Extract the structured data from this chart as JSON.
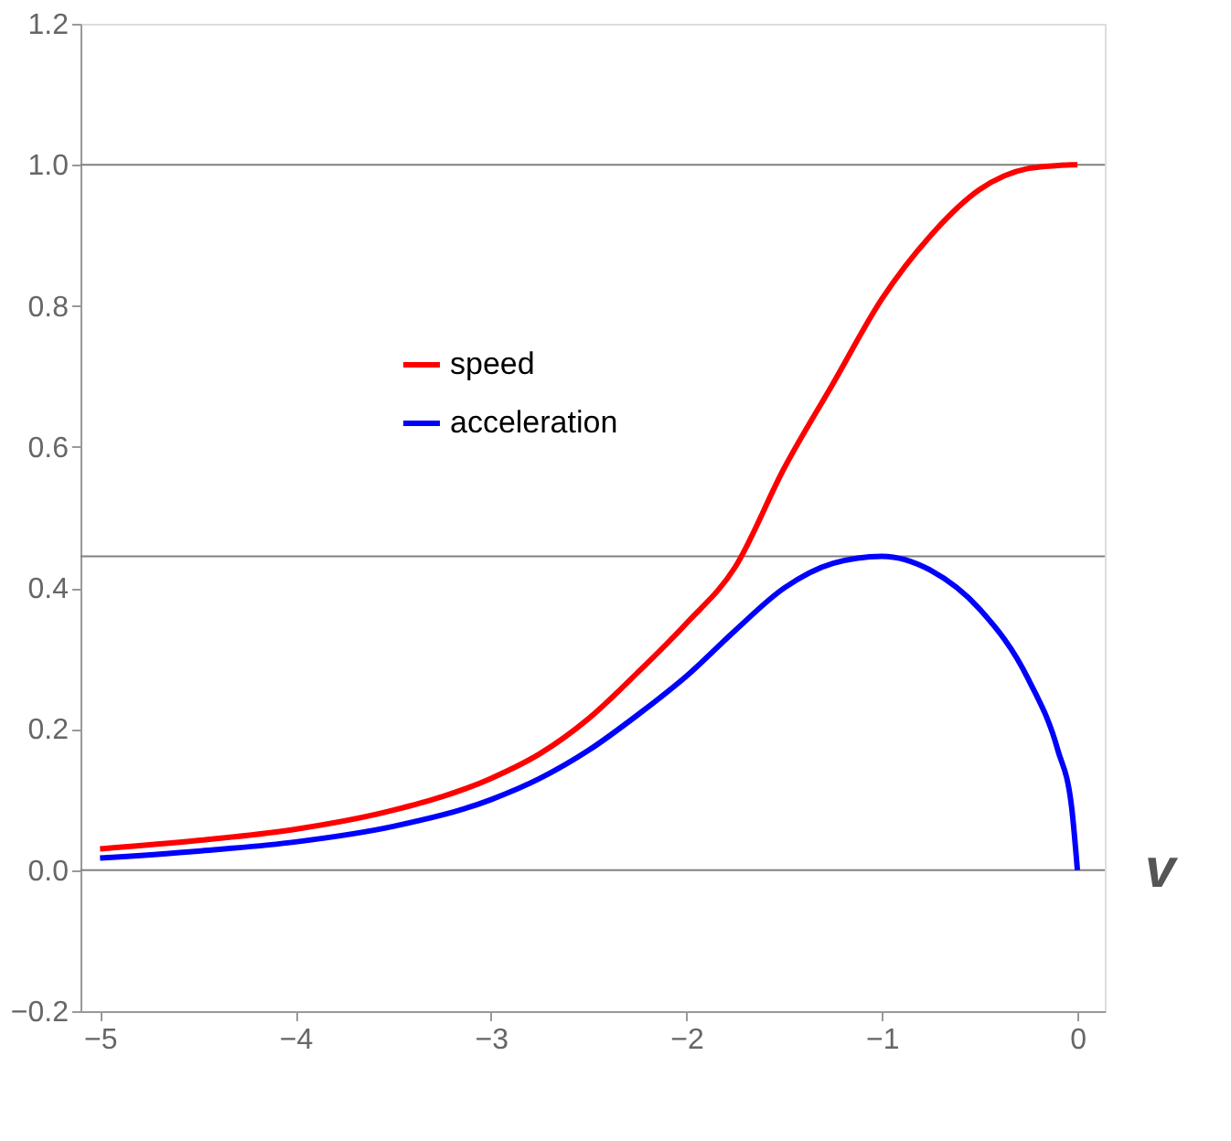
{
  "chart_data": {
    "type": "line",
    "x": [
      -5,
      -4.5,
      -4,
      -3.5,
      -3,
      -2.75,
      -2.5,
      -2.25,
      -2,
      -1.75,
      -1.5,
      -1.25,
      -1,
      -0.75,
      -0.5,
      -0.25,
      -0.1,
      -0.03,
      0
    ],
    "series": [
      {
        "name": "speed",
        "color": "#ff0000",
        "values": [
          0.03,
          0.042,
          0.058,
          0.085,
          0.13,
          0.165,
          0.215,
          0.28,
          0.35,
          0.43,
          0.57,
          0.69,
          0.81,
          0.9,
          0.965,
          0.995,
          0.999,
          1.0,
          1.0
        ]
      },
      {
        "name": "acceleration",
        "color": "#0000ff",
        "values": [
          0.017,
          0.027,
          0.04,
          0.062,
          0.1,
          0.13,
          0.17,
          0.22,
          0.275,
          0.34,
          0.4,
          0.435,
          0.445,
          0.425,
          0.37,
          0.27,
          0.17,
          0.09,
          0
        ]
      }
    ],
    "xlim": [
      -5.1,
      0.14
    ],
    "ylim": [
      -0.2,
      1.2
    ],
    "xticks": [
      -5,
      -4,
      -3,
      -2,
      -1,
      0
    ],
    "yticks": [
      {
        "value": -0.2,
        "label": "−0.2"
      },
      {
        "value": 0,
        "label": "0.0"
      },
      {
        "value": 0.2,
        "label": "0.2"
      },
      {
        "value": 0.4,
        "label": "0.4"
      },
      {
        "value": 0.6,
        "label": "0.6"
      },
      {
        "value": 0.8,
        "label": "0.8"
      },
      {
        "value": 1.0,
        "label": "1.0"
      },
      {
        "value": 1.2,
        "label": "1.2"
      }
    ],
    "ref_lines": [
      {
        "axis": "y",
        "value": 0,
        "color": "#808080"
      },
      {
        "axis": "y",
        "value": 0.445,
        "color": "#808080"
      },
      {
        "axis": "y",
        "value": 1.0,
        "color": "#808080"
      }
    ],
    "annotations": [
      "v"
    ],
    "legend": "top left",
    "grid": false,
    "marker": "none",
    "line_style": "solid"
  }
}
